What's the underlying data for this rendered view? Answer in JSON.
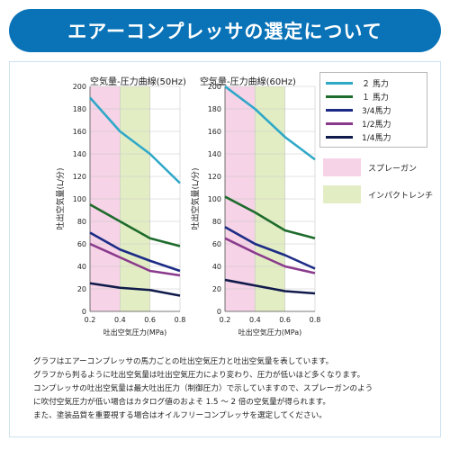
{
  "banner": {
    "title": "エアーコンプレッサの選定について"
  },
  "colors": {
    "hp2": "#2fa8c8",
    "hp1": "#1e6b2c",
    "hp34": "#1c2c86",
    "hp12": "#8a3a8c",
    "hp14": "#0f1a4a",
    "spray_zone": "#f6d3e6",
    "impact_zone": "#e2edc4",
    "banner": "#0a73b7"
  },
  "legend": {
    "items": [
      {
        "label": "２ 馬力",
        "color_key": "hp2"
      },
      {
        "label": "１ 馬力",
        "color_key": "hp1"
      },
      {
        "label": "3/4馬力",
        "color_key": "hp34"
      },
      {
        "label": "1/2馬力",
        "color_key": "hp12"
      },
      {
        "label": "1/4馬力",
        "color_key": "hp14"
      }
    ],
    "zones": [
      {
        "label": "スプレーガン",
        "color_key": "spray_zone"
      },
      {
        "label": "インパクトレンチ",
        "color_key": "impact_zone"
      }
    ]
  },
  "chart_data": [
    {
      "type": "line",
      "title": "空気量-圧力曲線(50Hz)",
      "xlabel": "吐出空気圧力(MPa)",
      "ylabel": "吐出空気量(L/分)",
      "xlim": [
        0.2,
        0.8
      ],
      "ylim": [
        0,
        200
      ],
      "x_ticks": [
        "0.2",
        "0.4",
        "0.6",
        "0.8"
      ],
      "y_ticks": [
        "0",
        "20",
        "40",
        "60",
        "80",
        "100",
        "120",
        "140",
        "160",
        "180",
        "200"
      ],
      "shaded_ranges": [
        {
          "from": 0.2,
          "to": 0.4,
          "zone": "spray_zone"
        },
        {
          "from": 0.4,
          "to": 0.6,
          "zone": "impact_zone"
        }
      ],
      "x": [
        0.2,
        0.4,
        0.6,
        0.8
      ],
      "series": [
        {
          "name": "２ 馬力",
          "color_key": "hp2",
          "values": [
            190,
            160,
            140,
            114
          ]
        },
        {
          "name": "１ 馬力",
          "color_key": "hp1",
          "values": [
            95,
            80,
            65,
            58
          ]
        },
        {
          "name": "3/4馬力",
          "color_key": "hp34",
          "values": [
            70,
            55,
            45,
            36
          ]
        },
        {
          "name": "1/2馬力",
          "color_key": "hp12",
          "values": [
            60,
            48,
            36,
            32
          ]
        },
        {
          "name": "1/4馬力",
          "color_key": "hp14",
          "values": [
            25,
            21,
            19,
            14
          ]
        }
      ]
    },
    {
      "type": "line",
      "title": "空気量-圧力曲線(60Hz)",
      "xlabel": "吐出空気圧力(MPa)",
      "ylabel": "吐出空気量(L/分)",
      "xlim": [
        0.2,
        0.8
      ],
      "ylim": [
        0,
        200
      ],
      "x_ticks": [
        "0.2",
        "0.4",
        "0.6",
        "0.8"
      ],
      "y_ticks": [
        "0",
        "20",
        "40",
        "60",
        "80",
        "100",
        "120",
        "140",
        "160",
        "180",
        "200"
      ],
      "shaded_ranges": [
        {
          "from": 0.2,
          "to": 0.4,
          "zone": "spray_zone"
        },
        {
          "from": 0.4,
          "to": 0.6,
          "zone": "impact_zone"
        }
      ],
      "x": [
        0.2,
        0.4,
        0.6,
        0.8
      ],
      "series": [
        {
          "name": "２ 馬力",
          "color_key": "hp2",
          "values": [
            200,
            180,
            155,
            135
          ]
        },
        {
          "name": "１ 馬力",
          "color_key": "hp1",
          "values": [
            102,
            88,
            72,
            65
          ]
        },
        {
          "name": "3/4馬力",
          "color_key": "hp34",
          "values": [
            75,
            60,
            50,
            38
          ]
        },
        {
          "name": "1/2馬力",
          "color_key": "hp12",
          "values": [
            65,
            52,
            40,
            34
          ]
        },
        {
          "name": "1/4馬力",
          "color_key": "hp14",
          "values": [
            28,
            23,
            18,
            16
          ]
        }
      ]
    }
  ],
  "description": [
    "グラフはエアーコンプレッサの馬力ごとの吐出空気圧力と吐出空気量を表しています。",
    "グラフから判るように吐出空気量は吐出空気圧力により変わり、圧力が低いほど多くなります。",
    "コンプレッサの吐出空気量は最大吐出圧力（制御圧力）で示していますので、スプレーガンのよう",
    "に吹付空気圧力が低い場合はカタログ値のおよそ 1.5 ～ 2 倍の空気量が得られます。",
    "また、塗装品質を重要視する場合はオイルフリーコンプレッサを選定してください。"
  ]
}
